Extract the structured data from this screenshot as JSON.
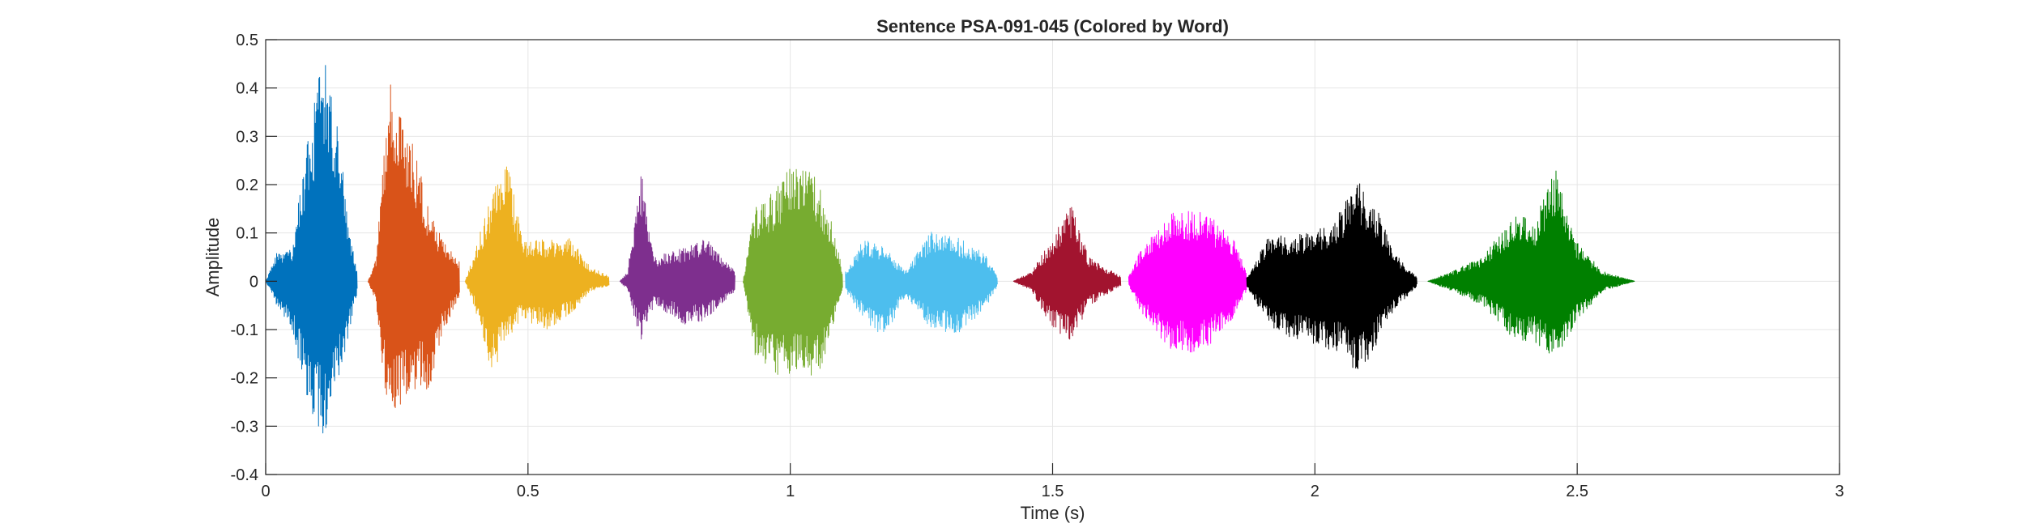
{
  "chart_data": {
    "type": "line",
    "title": "Sentence PSA-091-045 (Colored by Word)",
    "xlabel": "Time (s)",
    "ylabel": "Amplitude",
    "xlim": [
      0,
      3
    ],
    "ylim": [
      -0.4,
      0.5
    ],
    "xticks": [
      0,
      0.5,
      1,
      1.5,
      2,
      2.5,
      3
    ],
    "xtick_labels": [
      "0",
      "0.5",
      "1",
      "1.5",
      "2",
      "2.5",
      "3"
    ],
    "yticks": [
      -0.4,
      -0.3,
      -0.2,
      -0.1,
      0,
      0.1,
      0.2,
      0.3,
      0.4,
      0.5
    ],
    "ytick_labels": [
      "-0.4",
      "-0.3",
      "-0.2",
      "-0.1",
      "0",
      "0.1",
      "0.2",
      "0.3",
      "0.4",
      "0.5"
    ],
    "grid": true,
    "series": [
      {
        "color": "#0072BD",
        "x_start": 0.0,
        "x_end": 0.175,
        "envelope": [
          [
            0.0,
            0.0,
            0.0
          ],
          [
            0.02,
            0.06,
            -0.05
          ],
          [
            0.05,
            0.07,
            -0.1
          ],
          [
            0.08,
            0.3,
            -0.25
          ],
          [
            0.11,
            0.47,
            -0.33
          ],
          [
            0.14,
            0.3,
            -0.2
          ],
          [
            0.16,
            0.1,
            -0.1
          ],
          [
            0.175,
            0.02,
            -0.02
          ]
        ]
      },
      {
        "color": "#D95319",
        "x_start": 0.195,
        "x_end": 0.37,
        "envelope": [
          [
            0.195,
            0.0,
            0.0
          ],
          [
            0.21,
            0.05,
            -0.05
          ],
          [
            0.235,
            0.42,
            -0.3
          ],
          [
            0.26,
            0.35,
            -0.25
          ],
          [
            0.29,
            0.25,
            -0.22
          ],
          [
            0.31,
            0.15,
            -0.23
          ],
          [
            0.34,
            0.08,
            -0.1
          ],
          [
            0.37,
            0.04,
            -0.03
          ]
        ]
      },
      {
        "color": "#EDB120",
        "x_start": 0.38,
        "x_end": 0.655,
        "envelope": [
          [
            0.38,
            0.0,
            0.0
          ],
          [
            0.4,
            0.07,
            -0.06
          ],
          [
            0.43,
            0.18,
            -0.2
          ],
          [
            0.46,
            0.27,
            -0.12
          ],
          [
            0.49,
            0.08,
            -0.08
          ],
          [
            0.54,
            0.09,
            -0.1
          ],
          [
            0.58,
            0.09,
            -0.07
          ],
          [
            0.62,
            0.03,
            -0.02
          ],
          [
            0.655,
            0.01,
            -0.01
          ]
        ]
      },
      {
        "color": "#7E2F8E",
        "x_start": 0.675,
        "x_end": 0.895,
        "envelope": [
          [
            0.675,
            0.0,
            0.0
          ],
          [
            0.69,
            0.02,
            -0.02
          ],
          [
            0.715,
            0.24,
            -0.13
          ],
          [
            0.74,
            0.05,
            -0.05
          ],
          [
            0.8,
            0.07,
            -0.09
          ],
          [
            0.84,
            0.09,
            -0.08
          ],
          [
            0.895,
            0.02,
            -0.02
          ]
        ]
      },
      {
        "color": "#77AC30",
        "x_start": 0.91,
        "x_end": 1.1,
        "envelope": [
          [
            0.91,
            0.0,
            0.0
          ],
          [
            0.93,
            0.15,
            -0.15
          ],
          [
            0.98,
            0.2,
            -0.2
          ],
          [
            1.0,
            0.24,
            -0.19
          ],
          [
            1.05,
            0.22,
            -0.21
          ],
          [
            1.08,
            0.12,
            -0.1
          ],
          [
            1.1,
            0.02,
            -0.02
          ]
        ]
      },
      {
        "color": "#4DBEEE",
        "x_start": 1.105,
        "x_end": 1.395,
        "envelope": [
          [
            1.105,
            0.02,
            -0.02
          ],
          [
            1.14,
            0.09,
            -0.08
          ],
          [
            1.18,
            0.07,
            -0.12
          ],
          [
            1.22,
            0.02,
            -0.03
          ],
          [
            1.27,
            0.11,
            -0.1
          ],
          [
            1.32,
            0.09,
            -0.11
          ],
          [
            1.37,
            0.06,
            -0.06
          ],
          [
            1.395,
            0.01,
            -0.01
          ]
        ]
      },
      {
        "color": "#A2142F",
        "x_start": 1.425,
        "x_end": 1.63,
        "envelope": [
          [
            1.425,
            0.0,
            0.0
          ],
          [
            1.46,
            0.02,
            -0.02
          ],
          [
            1.5,
            0.09,
            -0.1
          ],
          [
            1.535,
            0.16,
            -0.13
          ],
          [
            1.57,
            0.05,
            -0.05
          ],
          [
            1.6,
            0.03,
            -0.03
          ],
          [
            1.63,
            0.01,
            -0.01
          ]
        ]
      },
      {
        "color": "#FF00FF",
        "x_start": 1.645,
        "x_end": 1.87,
        "envelope": [
          [
            1.645,
            0.01,
            -0.01
          ],
          [
            1.67,
            0.07,
            -0.07
          ],
          [
            1.72,
            0.14,
            -0.14
          ],
          [
            1.78,
            0.15,
            -0.15
          ],
          [
            1.84,
            0.1,
            -0.09
          ],
          [
            1.87,
            0.02,
            -0.02
          ]
        ]
      },
      {
        "color": "#000000",
        "x_start": 1.87,
        "x_end": 2.195,
        "envelope": [
          [
            1.87,
            0.01,
            -0.01
          ],
          [
            1.91,
            0.09,
            -0.09
          ],
          [
            1.96,
            0.1,
            -0.12
          ],
          [
            2.0,
            0.1,
            -0.13
          ],
          [
            2.05,
            0.15,
            -0.15
          ],
          [
            2.08,
            0.21,
            -0.19
          ],
          [
            2.11,
            0.18,
            -0.15
          ],
          [
            2.15,
            0.06,
            -0.06
          ],
          [
            2.195,
            0.01,
            -0.01
          ]
        ]
      },
      {
        "color": "#008000",
        "x_start": 2.215,
        "x_end": 2.61,
        "envelope": [
          [
            2.215,
            0.0,
            0.0
          ],
          [
            2.26,
            0.02,
            -0.02
          ],
          [
            2.32,
            0.05,
            -0.05
          ],
          [
            2.38,
            0.14,
            -0.12
          ],
          [
            2.42,
            0.13,
            -0.13
          ],
          [
            2.46,
            0.24,
            -0.17
          ],
          [
            2.5,
            0.08,
            -0.08
          ],
          [
            2.55,
            0.02,
            -0.02
          ],
          [
            2.61,
            0.0,
            0.0
          ]
        ]
      }
    ]
  }
}
